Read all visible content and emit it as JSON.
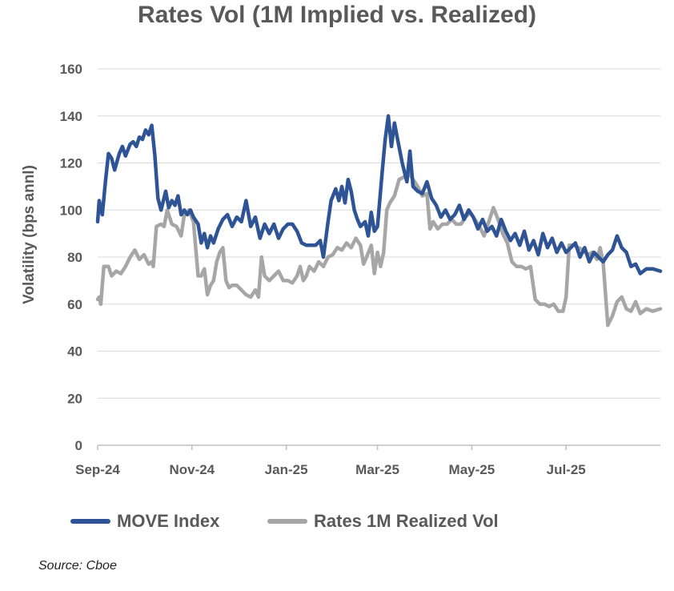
{
  "chart_data": {
    "type": "line",
    "title": "Rates Vol (1M Implied vs. Realized)",
    "ylabel": "Volatility (bps annl)",
    "ylim": [
      0,
      160
    ],
    "yticks": [
      0,
      20,
      40,
      60,
      80,
      100,
      120,
      140,
      160
    ],
    "xlim": [
      "2024-09-01",
      "2025-08-31"
    ],
    "xticks": [
      {
        "date": "2024-09-01",
        "label": "Sep-24"
      },
      {
        "date": "2024-11-01",
        "label": "Nov-24"
      },
      {
        "date": "2025-01-01",
        "label": "Jan-25"
      },
      {
        "date": "2025-03-01",
        "label": "Mar-25"
      },
      {
        "date": "2025-05-01",
        "label": "May-25"
      },
      {
        "date": "2025-07-01",
        "label": "Jul-25"
      }
    ],
    "grid": "horizontal",
    "legend_position": "bottom",
    "source": "Source: Cboe",
    "series": [
      {
        "name": "MOVE Index",
        "color": "#2F5496",
        "points": [
          [
            "2024-09-01",
            95
          ],
          [
            "2024-09-02",
            104
          ],
          [
            "2024-09-04",
            98
          ],
          [
            "2024-09-06",
            112
          ],
          [
            "2024-09-08",
            124
          ],
          [
            "2024-09-10",
            122
          ],
          [
            "2024-09-12",
            117
          ],
          [
            "2024-09-15",
            124
          ],
          [
            "2024-09-17",
            127
          ],
          [
            "2024-09-19",
            123
          ],
          [
            "2024-09-22",
            128
          ],
          [
            "2024-09-24",
            129
          ],
          [
            "2024-09-26",
            127
          ],
          [
            "2024-09-28",
            131
          ],
          [
            "2024-09-30",
            130
          ],
          [
            "2024-10-02",
            134
          ],
          [
            "2024-10-04",
            132
          ],
          [
            "2024-10-06",
            136
          ],
          [
            "2024-10-08",
            123
          ],
          [
            "2024-10-10",
            105
          ],
          [
            "2024-10-12",
            100
          ],
          [
            "2024-10-15",
            108
          ],
          [
            "2024-10-17",
            101
          ],
          [
            "2024-10-19",
            104
          ],
          [
            "2024-10-21",
            102
          ],
          [
            "2024-10-23",
            106
          ],
          [
            "2024-10-25",
            98
          ],
          [
            "2024-10-27",
            100
          ],
          [
            "2024-10-29",
            98
          ],
          [
            "2024-10-31",
            100
          ],
          [
            "2024-11-02",
            97
          ],
          [
            "2024-11-05",
            94
          ],
          [
            "2024-11-07",
            86
          ],
          [
            "2024-11-09",
            90
          ],
          [
            "2024-11-11",
            84
          ],
          [
            "2024-11-13",
            89
          ],
          [
            "2024-11-15",
            86
          ],
          [
            "2024-11-18",
            92
          ],
          [
            "2024-11-21",
            96
          ],
          [
            "2024-11-24",
            98
          ],
          [
            "2024-11-27",
            93
          ],
          [
            "2024-11-30",
            97
          ],
          [
            "2024-12-03",
            95
          ],
          [
            "2024-12-06",
            104
          ],
          [
            "2024-12-09",
            93
          ],
          [
            "2024-12-12",
            97
          ],
          [
            "2024-12-15",
            88
          ],
          [
            "2024-12-18",
            94
          ],
          [
            "2024-12-21",
            90
          ],
          [
            "2024-12-24",
            94
          ],
          [
            "2024-12-27",
            88
          ],
          [
            "2024-12-30",
            92
          ],
          [
            "2025-01-02",
            94
          ],
          [
            "2025-01-05",
            94
          ],
          [
            "2025-01-08",
            91
          ],
          [
            "2025-01-11",
            86
          ],
          [
            "2025-01-14",
            85
          ],
          [
            "2025-01-17",
            85
          ],
          [
            "2025-01-20",
            85
          ],
          [
            "2025-01-23",
            87
          ],
          [
            "2025-01-25",
            80
          ],
          [
            "2025-01-28",
            95
          ],
          [
            "2025-01-30",
            104
          ],
          [
            "2025-02-02",
            109
          ],
          [
            "2025-02-04",
            104
          ],
          [
            "2025-02-06",
            110
          ],
          [
            "2025-02-08",
            103
          ],
          [
            "2025-02-10",
            113
          ],
          [
            "2025-02-12",
            108
          ],
          [
            "2025-02-14",
            100
          ],
          [
            "2025-02-16",
            96
          ],
          [
            "2025-02-18",
            93
          ],
          [
            "2025-02-21",
            95
          ],
          [
            "2025-02-23",
            89
          ],
          [
            "2025-02-25",
            99
          ],
          [
            "2025-02-27",
            91
          ],
          [
            "2025-03-01",
            93
          ],
          [
            "2025-03-04",
            116
          ],
          [
            "2025-03-06",
            130
          ],
          [
            "2025-03-08",
            140
          ],
          [
            "2025-03-10",
            127
          ],
          [
            "2025-03-12",
            137
          ],
          [
            "2025-03-14",
            130
          ],
          [
            "2025-03-17",
            120
          ],
          [
            "2025-03-20",
            112
          ],
          [
            "2025-03-22",
            125
          ],
          [
            "2025-03-24",
            110
          ],
          [
            "2025-03-27",
            108
          ],
          [
            "2025-03-30",
            107
          ],
          [
            "2025-04-02",
            112
          ],
          [
            "2025-04-05",
            105
          ],
          [
            "2025-04-08",
            102
          ],
          [
            "2025-04-11",
            97
          ],
          [
            "2025-04-14",
            100
          ],
          [
            "2025-04-17",
            96
          ],
          [
            "2025-04-20",
            98
          ],
          [
            "2025-04-23",
            102
          ],
          [
            "2025-04-26",
            96
          ],
          [
            "2025-04-29",
            100
          ],
          [
            "2025-05-02",
            97
          ],
          [
            "2025-05-05",
            92
          ],
          [
            "2025-05-08",
            96
          ],
          [
            "2025-05-11",
            91
          ],
          [
            "2025-05-14",
            93
          ],
          [
            "2025-05-17",
            89
          ],
          [
            "2025-05-20",
            96
          ],
          [
            "2025-05-23",
            91
          ],
          [
            "2025-05-26",
            87
          ],
          [
            "2025-05-29",
            90
          ],
          [
            "2025-06-01",
            85
          ],
          [
            "2025-06-04",
            91
          ],
          [
            "2025-06-07",
            83
          ],
          [
            "2025-06-10",
            87
          ],
          [
            "2025-06-13",
            81
          ],
          [
            "2025-06-16",
            90
          ],
          [
            "2025-06-19",
            84
          ],
          [
            "2025-06-22",
            88
          ],
          [
            "2025-06-25",
            82
          ],
          [
            "2025-06-28",
            86
          ],
          [
            "2025-07-01",
            82
          ],
          [
            "2025-07-04",
            84
          ],
          [
            "2025-07-07",
            86
          ],
          [
            "2025-07-10",
            80
          ],
          [
            "2025-07-13",
            84
          ],
          [
            "2025-07-16",
            78
          ],
          [
            "2025-07-19",
            82
          ],
          [
            "2025-07-22",
            80
          ],
          [
            "2025-07-25",
            78
          ],
          [
            "2025-07-28",
            81
          ],
          [
            "2025-07-31",
            83
          ],
          [
            "2025-08-03",
            89
          ],
          [
            "2025-08-06",
            84
          ],
          [
            "2025-08-09",
            82
          ],
          [
            "2025-08-12",
            76
          ],
          [
            "2025-08-15",
            77
          ],
          [
            "2025-08-18",
            73
          ],
          [
            "2025-08-22",
            75
          ],
          [
            "2025-08-26",
            75
          ],
          [
            "2025-08-31",
            74
          ]
        ]
      },
      {
        "name": "Rates 1M Realized Vol",
        "color": "#A6A6A6",
        "points": [
          [
            "2024-09-01",
            62
          ],
          [
            "2024-09-02",
            63
          ],
          [
            "2024-09-03",
            60
          ],
          [
            "2024-09-05",
            76
          ],
          [
            "2024-09-08",
            76
          ],
          [
            "2024-09-10",
            72
          ],
          [
            "2024-09-13",
            74
          ],
          [
            "2024-09-16",
            73
          ],
          [
            "2024-09-19",
            76
          ],
          [
            "2024-09-22",
            80
          ],
          [
            "2024-09-25",
            83
          ],
          [
            "2024-09-28",
            79
          ],
          [
            "2024-10-01",
            81
          ],
          [
            "2024-10-04",
            77
          ],
          [
            "2024-10-06",
            78
          ],
          [
            "2024-10-07",
            76
          ],
          [
            "2024-10-09",
            93
          ],
          [
            "2024-10-12",
            94
          ],
          [
            "2024-10-14",
            93
          ],
          [
            "2024-10-16",
            100
          ],
          [
            "2024-10-19",
            94
          ],
          [
            "2024-10-22",
            93
          ],
          [
            "2024-10-25",
            89
          ],
          [
            "2024-10-27",
            98
          ],
          [
            "2024-10-30",
            100
          ],
          [
            "2024-11-02",
            95
          ],
          [
            "2024-11-05",
            72
          ],
          [
            "2024-11-07",
            72
          ],
          [
            "2024-11-09",
            75
          ],
          [
            "2024-11-11",
            64
          ],
          [
            "2024-11-13",
            68
          ],
          [
            "2024-11-15",
            70
          ],
          [
            "2024-11-17",
            78
          ],
          [
            "2024-11-19",
            82
          ],
          [
            "2024-11-21",
            84
          ],
          [
            "2024-11-23",
            70
          ],
          [
            "2024-11-25",
            67
          ],
          [
            "2024-11-27",
            68
          ],
          [
            "2024-11-30",
            68
          ],
          [
            "2024-12-03",
            66
          ],
          [
            "2024-12-06",
            64
          ],
          [
            "2024-12-09",
            63
          ],
          [
            "2024-12-12",
            66
          ],
          [
            "2024-12-14",
            63
          ],
          [
            "2024-12-16",
            80
          ],
          [
            "2024-12-18",
            72
          ],
          [
            "2024-12-21",
            70
          ],
          [
            "2024-12-24",
            72
          ],
          [
            "2024-12-27",
            74
          ],
          [
            "2024-12-30",
            70
          ],
          [
            "2025-01-02",
            70
          ],
          [
            "2025-01-05",
            69
          ],
          [
            "2025-01-08",
            72
          ],
          [
            "2025-01-10",
            76
          ],
          [
            "2025-01-12",
            70
          ],
          [
            "2025-01-14",
            72
          ],
          [
            "2025-01-16",
            76
          ],
          [
            "2025-01-19",
            74
          ],
          [
            "2025-01-22",
            78
          ],
          [
            "2025-01-25",
            76
          ],
          [
            "2025-01-28",
            80
          ],
          [
            "2025-01-31",
            81
          ],
          [
            "2025-02-03",
            84
          ],
          [
            "2025-02-06",
            83
          ],
          [
            "2025-02-09",
            86
          ],
          [
            "2025-02-12",
            84
          ],
          [
            "2025-02-15",
            88
          ],
          [
            "2025-02-18",
            85
          ],
          [
            "2025-02-20",
            77
          ],
          [
            "2025-02-22",
            80
          ],
          [
            "2025-02-25",
            85
          ],
          [
            "2025-02-27",
            73
          ],
          [
            "2025-03-01",
            82
          ],
          [
            "2025-03-03",
            76
          ],
          [
            "2025-03-05",
            82
          ],
          [
            "2025-03-07",
            100
          ],
          [
            "2025-03-09",
            103
          ],
          [
            "2025-03-12",
            106
          ],
          [
            "2025-03-15",
            113
          ],
          [
            "2025-03-18",
            114
          ],
          [
            "2025-03-21",
            116
          ],
          [
            "2025-03-24",
            113
          ],
          [
            "2025-03-27",
            110
          ],
          [
            "2025-03-30",
            106
          ],
          [
            "2025-04-02",
            107
          ],
          [
            "2025-04-04",
            92
          ],
          [
            "2025-04-06",
            95
          ],
          [
            "2025-04-09",
            92
          ],
          [
            "2025-04-12",
            94
          ],
          [
            "2025-04-15",
            94
          ],
          [
            "2025-04-18",
            96
          ],
          [
            "2025-04-21",
            94
          ],
          [
            "2025-04-24",
            94
          ],
          [
            "2025-04-27",
            97
          ],
          [
            "2025-04-30",
            99
          ],
          [
            "2025-05-03",
            96
          ],
          [
            "2025-05-06",
            93
          ],
          [
            "2025-05-09",
            89
          ],
          [
            "2025-05-12",
            95
          ],
          [
            "2025-05-15",
            101
          ],
          [
            "2025-05-18",
            96
          ],
          [
            "2025-05-21",
            90
          ],
          [
            "2025-05-24",
            86
          ],
          [
            "2025-05-27",
            78
          ],
          [
            "2025-05-30",
            76
          ],
          [
            "2025-06-02",
            76
          ],
          [
            "2025-06-05",
            75
          ],
          [
            "2025-06-08",
            76
          ],
          [
            "2025-06-11",
            62
          ],
          [
            "2025-06-14",
            60
          ],
          [
            "2025-06-17",
            60
          ],
          [
            "2025-06-20",
            59
          ],
          [
            "2025-06-23",
            60
          ],
          [
            "2025-06-26",
            57
          ],
          [
            "2025-06-29",
            57
          ],
          [
            "2025-07-01",
            63
          ],
          [
            "2025-07-03",
            85
          ],
          [
            "2025-07-06",
            85
          ],
          [
            "2025-07-09",
            84
          ],
          [
            "2025-07-12",
            83
          ],
          [
            "2025-07-15",
            81
          ],
          [
            "2025-07-18",
            82
          ],
          [
            "2025-07-21",
            79
          ],
          [
            "2025-07-23",
            84
          ],
          [
            "2025-07-25",
            78
          ],
          [
            "2025-07-28",
            51
          ],
          [
            "2025-07-31",
            55
          ],
          [
            "2025-08-03",
            61
          ],
          [
            "2025-08-06",
            63
          ],
          [
            "2025-08-09",
            58
          ],
          [
            "2025-08-12",
            57
          ],
          [
            "2025-08-15",
            61
          ],
          [
            "2025-08-18",
            56
          ],
          [
            "2025-08-22",
            58
          ],
          [
            "2025-08-26",
            57
          ],
          [
            "2025-08-31",
            58
          ]
        ]
      }
    ]
  }
}
